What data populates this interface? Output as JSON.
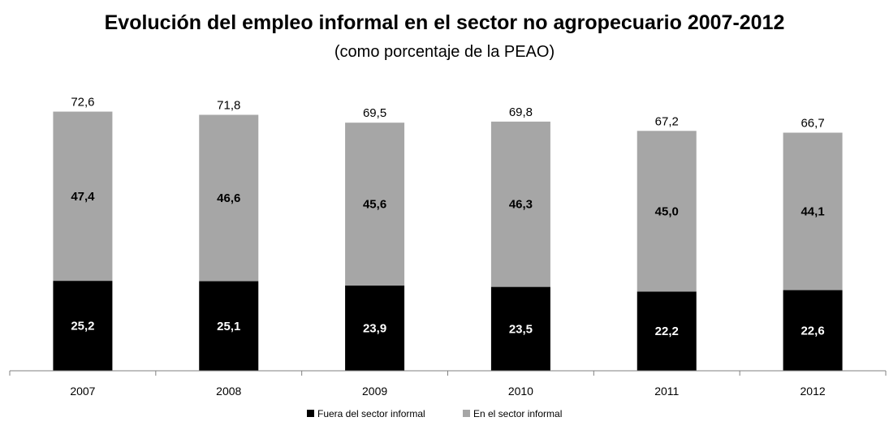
{
  "chart_data": {
    "type": "bar",
    "stacked": true,
    "title": "Evolución del empleo informal  en el sector no agropecuario 2007-2012",
    "subtitle": "(como porcentaje de la PEAO)",
    "categories": [
      "2007",
      "2008",
      "2009",
      "2010",
      "2011",
      "2012"
    ],
    "series": [
      {
        "name": "Fuera del sector informal",
        "values": [
          25.2,
          25.1,
          23.9,
          23.5,
          22.2,
          22.6
        ],
        "labels": [
          "25,2",
          "25,1",
          "23,9",
          "23,5",
          "22,2",
          "22,6"
        ],
        "color": "#000000",
        "label_color": "#ffffff"
      },
      {
        "name": "En el sector informal",
        "values": [
          47.4,
          46.6,
          45.6,
          46.3,
          45.0,
          44.1
        ],
        "labels": [
          "47,4",
          "46,6",
          "45,6",
          "46,3",
          "45,0",
          "44,1"
        ],
        "color": "#a6a6a6",
        "label_color": "#000000"
      }
    ],
    "totals": [
      "72,6",
      "71,8",
      "69,5",
      "69,8",
      "67,2",
      "66,7"
    ],
    "ylim": [
      0,
      75
    ],
    "grid": false,
    "legend_position": "bottom"
  }
}
